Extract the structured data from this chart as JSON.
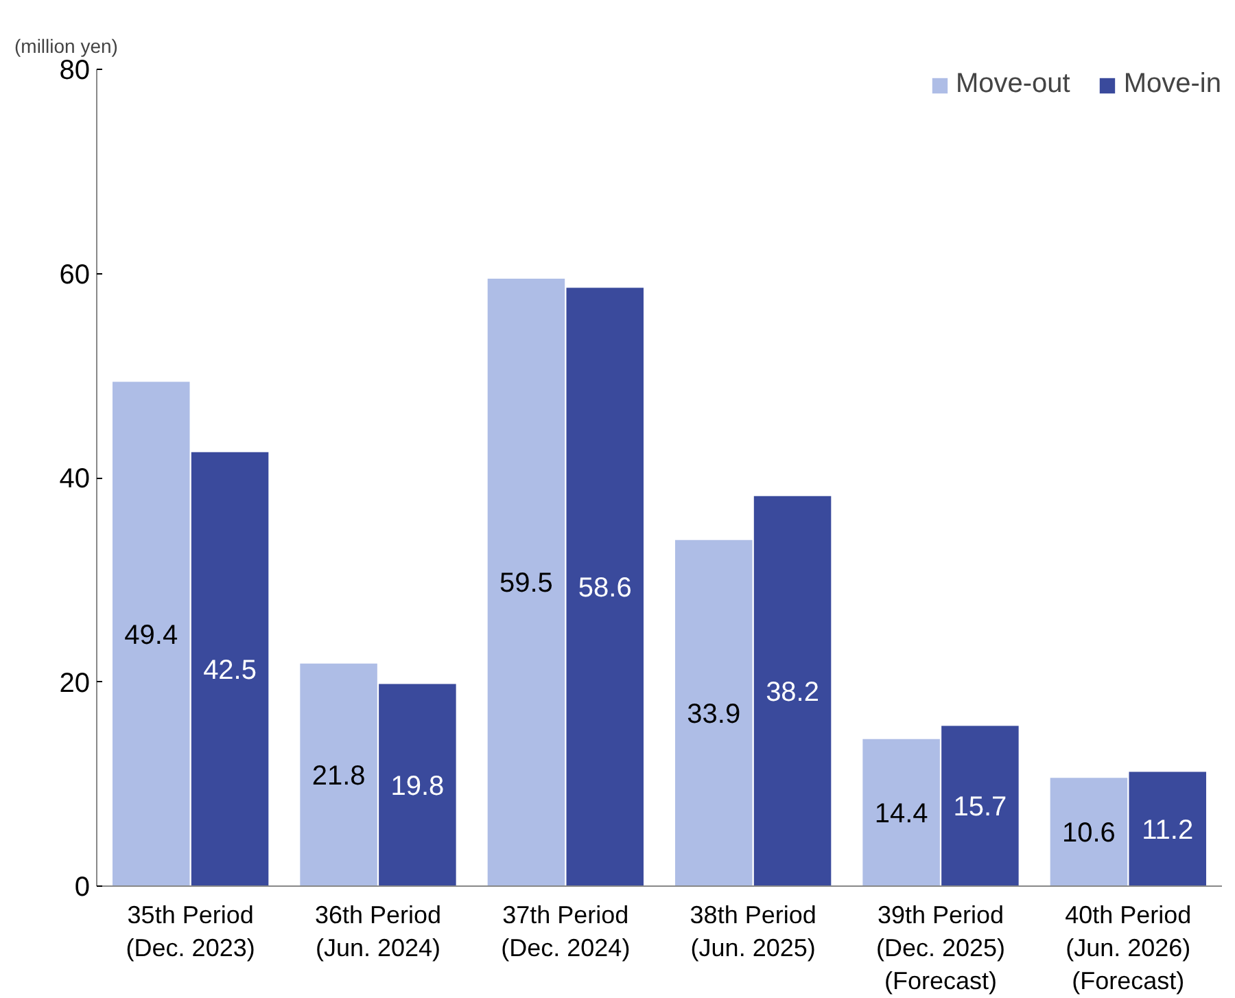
{
  "chart_data": {
    "type": "bar",
    "ylabel": "(million yen)",
    "categories": [
      "35th Period\n(Dec. 2023)",
      "36th Period\n(Jun. 2024)",
      "37th Period\n(Dec. 2024)",
      "38th Period\n(Jun. 2025)",
      "39th Period\n(Dec. 2025)\n(Forecast)",
      "40th Period\n(Jun. 2026)\n(Forecast)"
    ],
    "series": [
      {
        "name": "Move-out",
        "color": "#aebde6",
        "values": [
          49.4,
          21.8,
          59.5,
          33.9,
          14.4,
          10.6
        ]
      },
      {
        "name": "Move-in",
        "color": "#3a4a9c",
        "values": [
          42.5,
          19.8,
          58.6,
          38.2,
          15.7,
          11.2
        ]
      }
    ],
    "ylim": [
      0,
      80
    ],
    "yticks": [
      0,
      20,
      40,
      60,
      80
    ],
    "data_labels": true,
    "grid": false,
    "legend": "top right"
  }
}
